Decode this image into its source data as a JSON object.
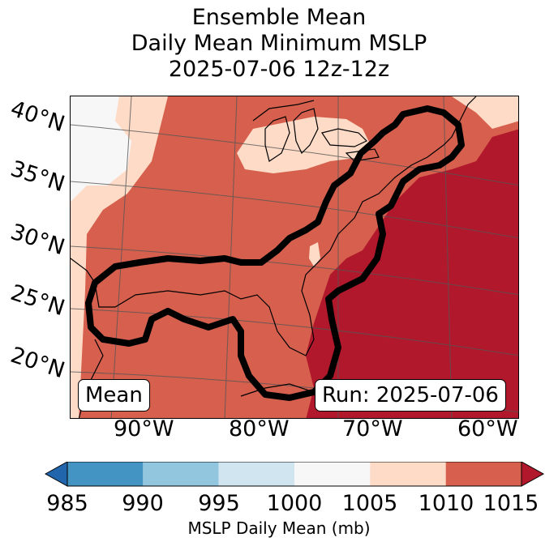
{
  "title": {
    "line1": "Ensemble Mean",
    "line2": "Daily Mean Minimum MSLP",
    "line3": "2025-07-06 12z-12z"
  },
  "map": {
    "latitude_labels": [
      "40°N",
      "35°N",
      "30°N",
      "25°N",
      "20°N"
    ],
    "longitude_labels": [
      "90°W",
      "80°W",
      "70°W",
      "60°W"
    ],
    "mean_box": "Mean",
    "run_box": "Run: 2025-07-06",
    "colors": {
      "lt985": "#2166ac",
      "b985_990": "#4393c3",
      "b990_995": "#92c5de",
      "b995_1000": "#d1e5f0",
      "b1000_1005": "#f7f7f7",
      "b1005_1010": "#fddbc7",
      "b1010_1015": "#d6604d",
      "gt1015": "#b2182b"
    }
  },
  "colorbar": {
    "label": "MSLP Daily Mean (mb)",
    "ticks": [
      "985",
      "990",
      "995",
      "1000",
      "1005",
      "1010",
      "1015"
    ],
    "colors": [
      "#4393c3",
      "#92c5de",
      "#d1e5f0",
      "#f7f7f7",
      "#fddbc7",
      "#d6604d"
    ],
    "under_color": "#2166ac",
    "over_color": "#b2182b"
  }
}
